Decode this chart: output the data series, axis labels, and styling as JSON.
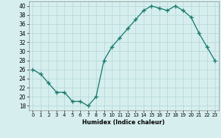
{
  "x": [
    0,
    1,
    2,
    3,
    4,
    5,
    6,
    7,
    8,
    9,
    10,
    11,
    12,
    13,
    14,
    15,
    16,
    17,
    18,
    19,
    20,
    21,
    22,
    23
  ],
  "y": [
    26,
    25,
    23,
    21,
    21,
    19,
    19,
    18,
    20,
    28,
    31,
    33,
    35,
    37,
    39,
    40,
    39.5,
    39,
    40,
    39,
    37.5,
    34,
    31,
    28
  ],
  "line_color": "#1a7a6e",
  "marker_color": "#1a7a6e",
  "bg_color": "#d6eeee",
  "grid_color": "#b8d8d8",
  "xlabel": "Humidex (Indice chaleur)",
  "ylabel_ticks": [
    18,
    20,
    22,
    24,
    26,
    28,
    30,
    32,
    34,
    36,
    38,
    40
  ],
  "ylim": [
    17,
    41
  ],
  "xlim": [
    -0.5,
    23.5
  ]
}
